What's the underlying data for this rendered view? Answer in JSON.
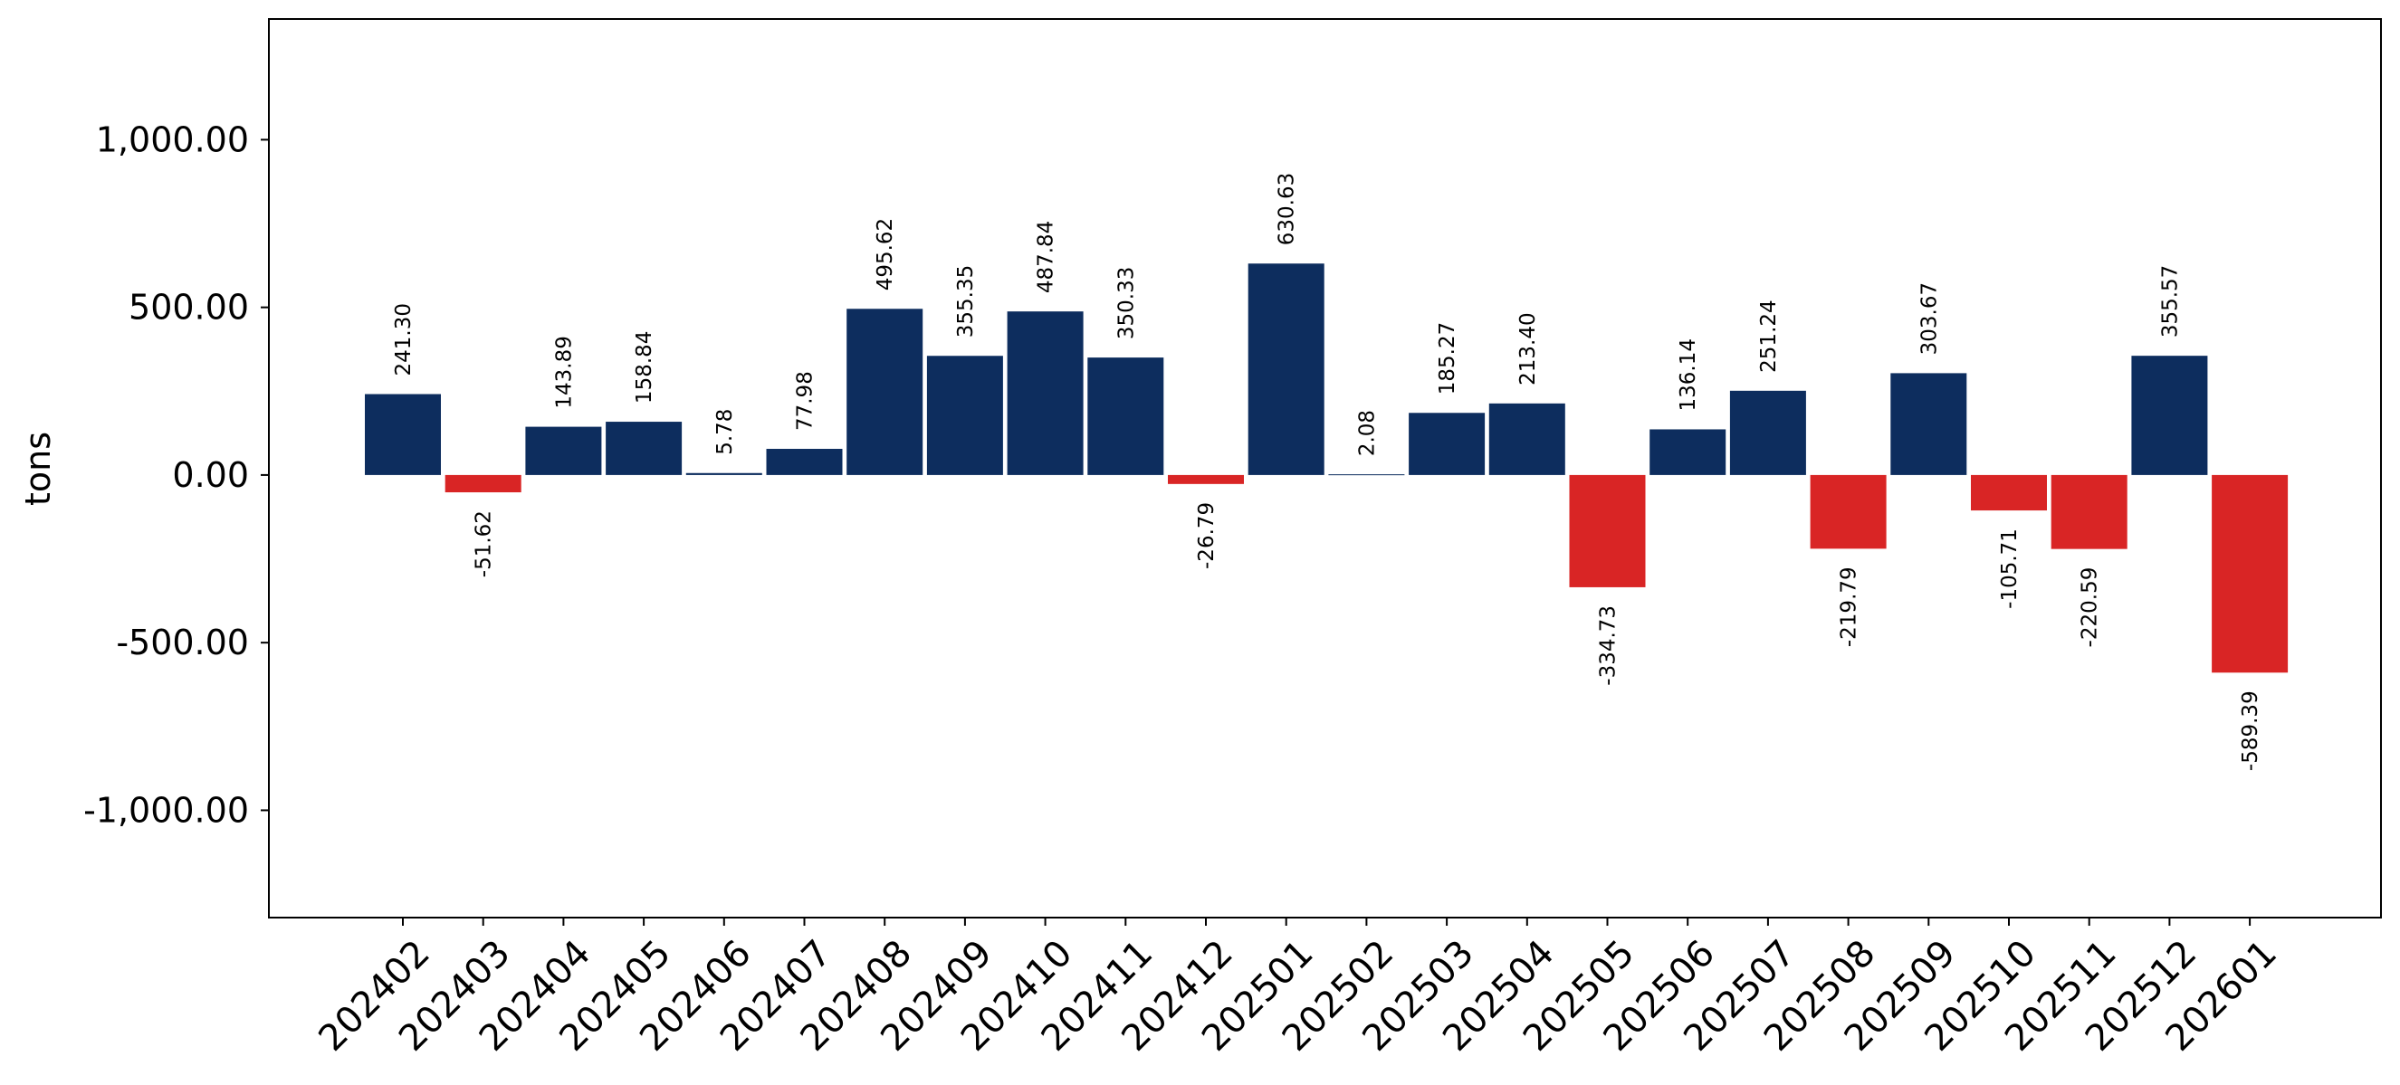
{
  "chart_data": {
    "type": "bar",
    "title": "",
    "xlabel": "",
    "ylabel": "tons",
    "ylim": [
      -1320,
      1360
    ],
    "yticks": [
      -1000,
      -500,
      0,
      500,
      1000
    ],
    "ytick_labels": [
      "-1,000.00",
      "-500.00",
      "0.00",
      "500.00",
      "1,000.00"
    ],
    "grid": false,
    "legend": "none",
    "colors": {
      "positive": "#0d2d5e",
      "negative": "#d92525"
    },
    "categories": [
      "202402",
      "202403",
      "202404",
      "202405",
      "202406",
      "202407",
      "202408",
      "202409",
      "202410",
      "202411",
      "202412",
      "202501",
      "202502",
      "202503",
      "202504",
      "202505",
      "202506",
      "202507",
      "202508",
      "202509",
      "202510",
      "202511",
      "202512",
      "202601"
    ],
    "values": [
      241.3,
      -51.62,
      143.89,
      158.84,
      5.78,
      77.98,
      495.62,
      355.35,
      487.84,
      350.33,
      -26.79,
      630.63,
      2.08,
      185.27,
      213.4,
      -334.73,
      136.14,
      251.24,
      -219.79,
      303.67,
      -105.71,
      -220.59,
      355.57,
      -589.39
    ],
    "value_labels": [
      "241.30",
      "-51.62",
      "143.89",
      "158.84",
      "5.78",
      "77.98",
      "495.62",
      "355.35",
      "487.84",
      "350.33",
      "-26.79",
      "630.63",
      "2.08",
      "185.27",
      "213.40",
      "-334.73",
      "136.14",
      "251.24",
      "-219.79",
      "303.67",
      "-105.71",
      "-220.59",
      "355.57",
      "-589.39"
    ]
  }
}
